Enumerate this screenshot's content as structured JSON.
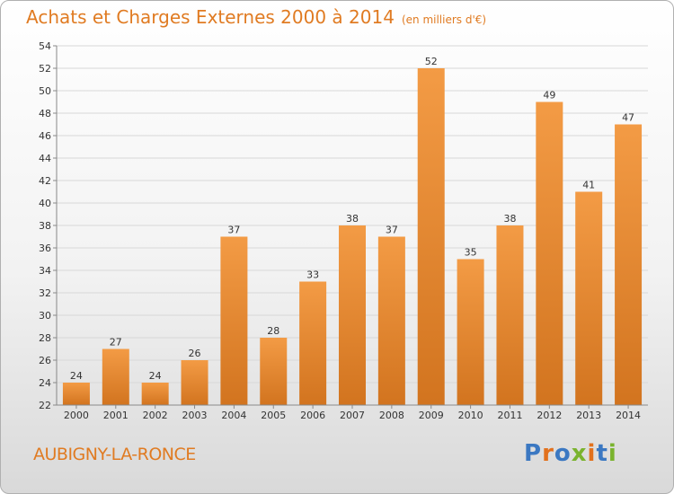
{
  "title": "Achats et Charges Externes 2000 à 2014",
  "unit": "(en milliers d'€)",
  "place": "AUBIGNY-LA-RONCE",
  "logo": {
    "text": "Proxiti",
    "letter_colors": [
      "#3b78c2",
      "#e2711d",
      "#3b78c2",
      "#7ab32e",
      "#e2711d",
      "#3b78c2",
      "#7ab32e"
    ]
  },
  "colors": {
    "bar": "#f39b45",
    "bar_dark": "#d2741f",
    "accent": "#e07b22"
  },
  "chart_data": {
    "type": "bar",
    "title": "Achats et Charges Externes 2000 à 2014",
    "subtitle": "(en milliers d'€)",
    "xlabel": "",
    "ylabel": "",
    "categories": [
      "2000",
      "2001",
      "2002",
      "2003",
      "2004",
      "2005",
      "2006",
      "2007",
      "2008",
      "2009",
      "2010",
      "2011",
      "2012",
      "2013",
      "2014"
    ],
    "values": [
      24,
      27,
      24,
      26,
      37,
      28,
      33,
      38,
      37,
      52,
      35,
      38,
      49,
      41,
      47
    ],
    "ylim": [
      22,
      54
    ],
    "yticks": [
      22,
      24,
      26,
      28,
      30,
      32,
      34,
      36,
      38,
      40,
      42,
      44,
      46,
      48,
      50,
      52,
      54
    ],
    "grid": true,
    "legend": "none"
  }
}
